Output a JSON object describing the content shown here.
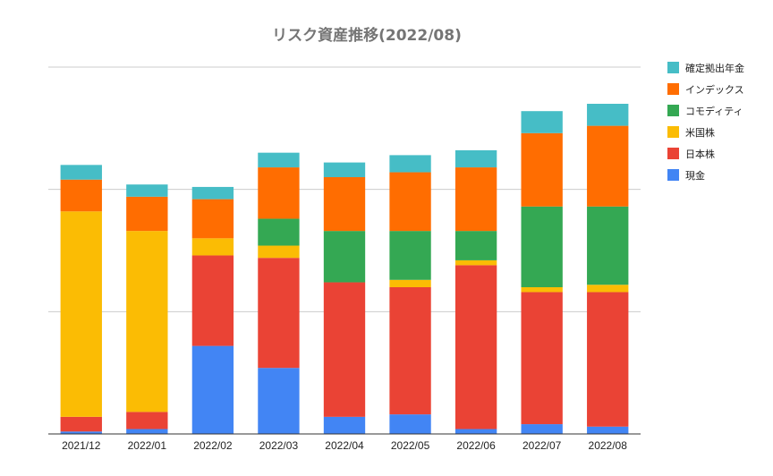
{
  "chart_data": {
    "type": "bar",
    "stacked": true,
    "title": "リスク資産推移(2022/08)",
    "xlabel": "",
    "ylabel": "",
    "ylim": [
      0,
      150
    ],
    "grid": true,
    "legend_position": "right",
    "categories": [
      "2021/12",
      "2022/01",
      "2022/02",
      "2022/03",
      "2022/04",
      "2022/05",
      "2022/06",
      "2022/07",
      "2022/08"
    ],
    "series": [
      {
        "name": "現金",
        "color": "#4285f4",
        "values": [
          1,
          2,
          36,
          27,
          7,
          8,
          2,
          4,
          3
        ]
      },
      {
        "name": "日本株",
        "color": "#ea4335",
        "values": [
          6,
          7,
          37,
          45,
          55,
          52,
          67,
          54,
          55
        ]
      },
      {
        "name": "米国株",
        "color": "#fbbc04",
        "values": [
          84,
          74,
          7,
          5,
          0,
          3,
          2,
          2,
          3
        ]
      },
      {
        "name": "コモディティ",
        "color": "#34a853",
        "values": [
          0,
          0,
          0,
          11,
          21,
          20,
          12,
          33,
          32
        ]
      },
      {
        "name": "インデックス",
        "color": "#ff6d01",
        "values": [
          13,
          14,
          16,
          21,
          22,
          24,
          26,
          30,
          33
        ]
      },
      {
        "name": "確定拠出年金",
        "color": "#46bdc6",
        "values": [
          6,
          5,
          5,
          6,
          6,
          7,
          7,
          9,
          9
        ]
      }
    ]
  }
}
